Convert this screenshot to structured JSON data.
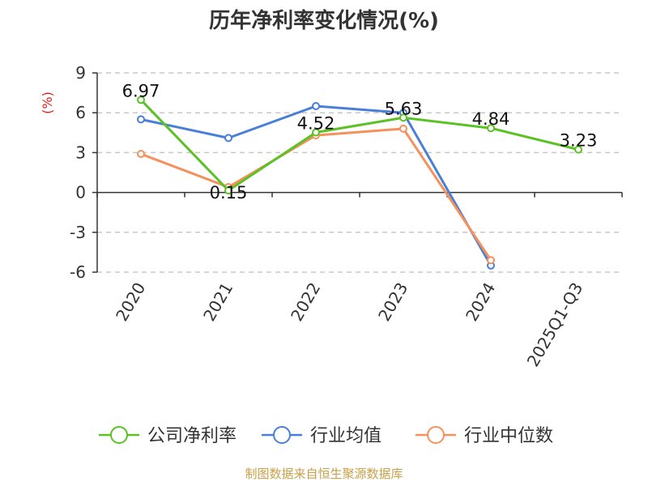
{
  "chart_data": {
    "type": "line",
    "title": "历年净利率变化情况(%)",
    "ylabel": "(%)",
    "xlabel": "",
    "categories": [
      "2020",
      "2021",
      "2022",
      "2023",
      "2024",
      "2025Q1-Q3"
    ],
    "y_ticks": [
      "9",
      "6",
      "3",
      "0",
      "-3",
      "-6"
    ],
    "ylim": [
      -6,
      9
    ],
    "grid": true,
    "legend": "bottom",
    "series": [
      {
        "name": "公司净利率",
        "color": "#5bc226",
        "values": [
          6.97,
          0.15,
          4.52,
          5.63,
          4.84,
          3.23
        ],
        "labels": [
          "6.97",
          "0.15",
          "4.52",
          "5.63",
          "4.84",
          "3.23"
        ]
      },
      {
        "name": "行业均值",
        "color": "#4a7fd8",
        "values": [
          5.5,
          4.1,
          6.5,
          6.0,
          -5.5,
          null
        ]
      },
      {
        "name": "行业中位数",
        "color": "#f5915a",
        "values": [
          2.9,
          0.4,
          4.3,
          4.8,
          -5.1,
          null
        ]
      }
    ],
    "source": "制图数据来自恒生聚源数据库"
  }
}
